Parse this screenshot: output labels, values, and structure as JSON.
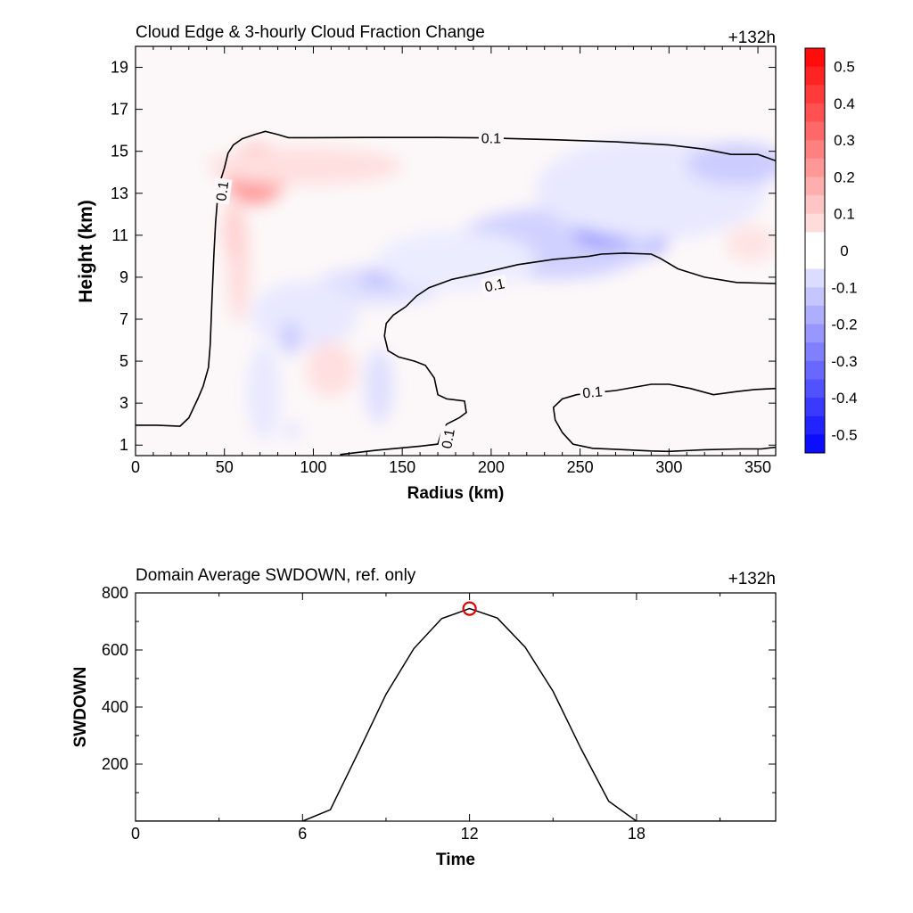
{
  "chart_data": [
    {
      "type": "heatmap",
      "title": "Cloud Edge & 3-hourly Cloud Fraction Change",
      "time_label": "+132h",
      "xlabel": "Radius (km)",
      "ylabel": "Height (km)",
      "xlim": [
        0,
        360
      ],
      "ylim": [
        0.5,
        20
      ],
      "xticks": [
        "0",
        "50",
        "100",
        "150",
        "200",
        "250",
        "300",
        "350"
      ],
      "yticks": [
        "1",
        "3",
        "5",
        "7",
        "9",
        "11",
        "13",
        "15",
        "17",
        "19"
      ],
      "colorbar": {
        "range": [
          -0.55,
          0.55
        ],
        "step": 0.05,
        "labels": [
          "0.5",
          "0.4",
          "0.3",
          "0.2",
          "0.1",
          "0",
          "-0.1",
          "-0.2",
          "-0.3",
          "-0.4",
          "-0.5"
        ],
        "color_positive": "#ff0000",
        "color_negative": "#0000ff"
      },
      "contour_level_label": "0.1",
      "contour_labels": [
        {
          "text": "0.1",
          "x": 200,
          "y": 15.6,
          "angle": 0
        },
        {
          "text": "0.1",
          "x": 49,
          "y": 13.1,
          "angle": -82
        },
        {
          "text": "0.1",
          "x": 202,
          "y": 8.6,
          "angle": -12
        },
        {
          "text": "0.1",
          "x": 257,
          "y": 3.5,
          "angle": -5
        },
        {
          "text": "0.1",
          "x": 176,
          "y": 1.3,
          "angle": -80
        }
      ],
      "contours": [
        [
          [
            0,
            1.95
          ],
          [
            12,
            1.95
          ],
          [
            25,
            1.9
          ],
          [
            30,
            2.3
          ],
          [
            35,
            3.2
          ],
          [
            38,
            3.8
          ],
          [
            41,
            4.7
          ],
          [
            42,
            5.8
          ],
          [
            43,
            8
          ],
          [
            44,
            10
          ],
          [
            45,
            11.6
          ],
          [
            46,
            12.6
          ],
          [
            47,
            13.4
          ],
          [
            50,
            14.2
          ],
          [
            52,
            14.9
          ],
          [
            55,
            15.3
          ],
          [
            60,
            15.6
          ],
          [
            67,
            15.8
          ],
          [
            73,
            15.95
          ],
          [
            80,
            15.8
          ],
          [
            86,
            15.65
          ],
          [
            100,
            15.65
          ],
          [
            130,
            15.66
          ],
          [
            170,
            15.66
          ],
          [
            195,
            15.64
          ],
          [
            235,
            15.55
          ],
          [
            270,
            15.45
          ],
          [
            300,
            15.3
          ],
          [
            320,
            15.1
          ],
          [
            335,
            14.85
          ],
          [
            350,
            14.85
          ],
          [
            360,
            14.55
          ]
        ],
        [
          [
            115,
            0.55
          ],
          [
            135,
            0.75
          ],
          [
            160,
            0.95
          ],
          [
            170,
            1.05
          ],
          [
            172,
            1.6
          ],
          [
            175,
            2
          ],
          [
            182,
            2.3
          ],
          [
            186,
            2.55
          ],
          [
            185,
            3.1
          ],
          [
            175,
            3.2
          ],
          [
            170,
            3.4
          ],
          [
            168,
            4.2
          ],
          [
            163,
            4.8
          ],
          [
            157,
            5
          ],
          [
            148,
            5.2
          ],
          [
            142,
            5.5
          ],
          [
            140,
            6.2
          ],
          [
            141,
            6.8
          ],
          [
            145,
            7.2
          ],
          [
            152,
            7.6
          ],
          [
            158,
            8.1
          ],
          [
            165,
            8.5
          ],
          [
            178,
            8.9
          ],
          [
            195,
            9.2
          ],
          [
            215,
            9.6
          ],
          [
            235,
            9.85
          ],
          [
            255,
            10
          ],
          [
            262,
            10.1
          ],
          [
            275,
            10.15
          ],
          [
            290,
            10.1
          ],
          [
            295,
            9.9
          ],
          [
            305,
            9.4
          ],
          [
            320,
            9
          ],
          [
            338,
            8.75
          ],
          [
            360,
            8.7
          ]
        ],
        [
          [
            360,
            3.7
          ],
          [
            348,
            3.65
          ],
          [
            338,
            3.55
          ],
          [
            325,
            3.4
          ],
          [
            312,
            3.7
          ],
          [
            300,
            3.9
          ],
          [
            290,
            3.9
          ],
          [
            280,
            3.75
          ],
          [
            270,
            3.6
          ],
          [
            258,
            3.5
          ],
          [
            248,
            3.4
          ],
          [
            240,
            3.2
          ],
          [
            235,
            2.8
          ],
          [
            236,
            2.2
          ],
          [
            240,
            1.6
          ],
          [
            246,
            1.05
          ],
          [
            257,
            0.85
          ],
          [
            270,
            0.8
          ],
          [
            290,
            0.72
          ],
          [
            300,
            0.7
          ],
          [
            320,
            0.78
          ],
          [
            340,
            0.82
          ],
          [
            352,
            0.82
          ],
          [
            360,
            0.9
          ]
        ]
      ],
      "field_blobs": [
        {
          "x": 68,
          "y": 13.9,
          "rx": 18,
          "ry": 1.4,
          "value": 0.22,
          "angle": -25
        },
        {
          "x": 95,
          "y": 14.3,
          "rx": 55,
          "ry": 0.9,
          "value": 0.07
        },
        {
          "x": 58,
          "y": 9.6,
          "rx": 6,
          "ry": 2.8,
          "value": 0.08
        },
        {
          "x": 55,
          "y": 11.2,
          "rx": 6,
          "ry": 1.4,
          "value": 0.1
        },
        {
          "x": 258,
          "y": 10.8,
          "rx": 42,
          "ry": 1.2,
          "value": -0.19
        },
        {
          "x": 235,
          "y": 10.6,
          "rx": 55,
          "ry": 1.7,
          "value": -0.1
        },
        {
          "x": 265,
          "y": 11.1,
          "rx": 18,
          "ry": 0.65,
          "value": -0.25
        },
        {
          "x": 290,
          "y": 13.2,
          "rx": 65,
          "ry": 2.4,
          "value": -0.05
        },
        {
          "x": 338,
          "y": 14.4,
          "rx": 28,
          "ry": 1.0,
          "value": -0.11
        },
        {
          "x": 137,
          "y": 8.6,
          "rx": 36,
          "ry": 0.9,
          "value": -0.07
        },
        {
          "x": 138,
          "y": 8.9,
          "rx": 12,
          "ry": 0.35,
          "value": -0.14
        },
        {
          "x": 95,
          "y": 7.2,
          "rx": 30,
          "ry": 1.6,
          "value": -0.05
        },
        {
          "x": 87,
          "y": 6.1,
          "rx": 5,
          "ry": 0.8,
          "value": -0.12
        },
        {
          "x": 110,
          "y": 4.6,
          "rx": 14,
          "ry": 1.3,
          "value": 0.07
        },
        {
          "x": 137,
          "y": 3.8,
          "rx": 8,
          "ry": 1.8,
          "value": -0.07
        },
        {
          "x": 72,
          "y": 3.5,
          "rx": 9,
          "ry": 2.3,
          "value": -0.05
        },
        {
          "x": 88,
          "y": 1.7,
          "rx": 5,
          "ry": 0.4,
          "value": -0.06
        },
        {
          "x": 346,
          "y": 10.6,
          "rx": 14,
          "ry": 0.9,
          "value": 0.06
        },
        {
          "x": 180,
          "y": 9.8,
          "rx": 45,
          "ry": 1.4,
          "value": -0.04
        }
      ]
    },
    {
      "type": "line",
      "title": "Domain Average SWDOWN, ref. only",
      "time_label": "+132h",
      "xlabel": "Time",
      "ylabel": "SWDOWN",
      "xlim": [
        0,
        23
      ],
      "ylim": [
        0,
        800
      ],
      "xticks": [
        "0",
        "6",
        "12",
        "18"
      ],
      "yticks": [
        "200",
        "400",
        "600",
        "800"
      ],
      "series": [
        {
          "x": [
            0,
            1,
            2,
            3,
            4,
            5,
            6,
            7,
            8,
            9,
            10,
            11,
            12,
            13,
            14,
            15,
            16,
            17,
            18,
            19,
            20,
            21,
            22,
            23
          ],
          "values": [
            0,
            0,
            0,
            0,
            0,
            0,
            0,
            40,
            240,
            445,
            605,
            710,
            745,
            712,
            610,
            455,
            255,
            70,
            0,
            0,
            0,
            0,
            0,
            0
          ]
        }
      ],
      "marker": {
        "x": 12,
        "y": 745,
        "color": "#dd0000"
      }
    }
  ]
}
